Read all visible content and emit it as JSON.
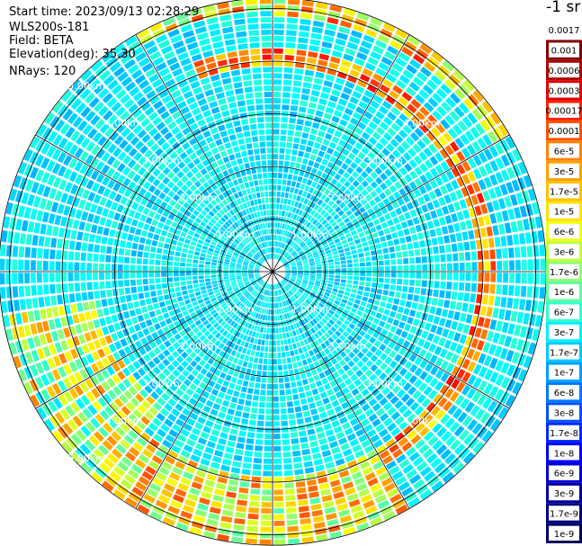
{
  "info": {
    "start_time": "Start time: 2023/09/13 02:28:29",
    "instrument": "WLS200s-181",
    "field": "Field: BETA",
    "elevation": "Elevation(deg): 35.30",
    "nrays": "NRays: 120"
  },
  "colorbar": {
    "unit": "-1 sr",
    "labels": [
      "0.0017",
      "0.001",
      "0.0006",
      "0.0003",
      "0.00017",
      "0.0001",
      "6e-5",
      "3e-5",
      "1.7e-5",
      "1e-5",
      "6e-6",
      "3e-6",
      "1.7e-6",
      "1e-6",
      "6e-7",
      "3e-7",
      "1.7e-7",
      "1e-7",
      "6e-8",
      "3e-8",
      "1.7e-8",
      "1e-8",
      "6e-9",
      "3e-9",
      "1.7e-9",
      "1e-9"
    ],
    "colors": [
      "#ffffff",
      "#800000",
      "#b00000",
      "#e00000",
      "#ff2000",
      "#ff5000",
      "#ff8000",
      "#ffa000",
      "#ffc000",
      "#ffe000",
      "#f0ff10",
      "#c0ff40",
      "#90ff70",
      "#60ffa0",
      "#30ffd0",
      "#00f0ff",
      "#00c8ff",
      "#00a0ff",
      "#0078ff",
      "#0050ff",
      "#0028ff",
      "#0000ff",
      "#0000d0",
      "#0000a0",
      "#000080",
      "#000060"
    ]
  },
  "chart_data": {
    "type": "heatmap",
    "projection": "polar PPI",
    "rays": 120,
    "range_rings_km": [
      1,
      2,
      3,
      4,
      5
    ],
    "ring_labels": [
      "1.00km",
      "2.00km",
      "3.00km",
      "4.00km",
      "5.00km"
    ],
    "max_range_km": 5.2,
    "spoke_interval_deg": 30,
    "value_scale": "log",
    "value_range": [
      1e-09,
      0.0017
    ],
    "field": "BETA"
  }
}
